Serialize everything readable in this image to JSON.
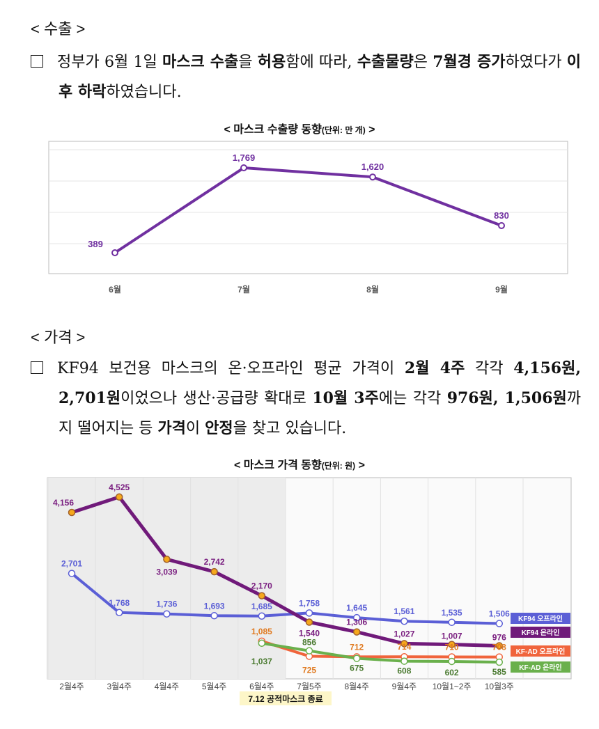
{
  "export_heading": "< 수출 >",
  "export_paragraph": [
    [
      "정부가 6월 1일 ",
      0
    ],
    [
      "마스크 수출",
      1
    ],
    [
      "을 ",
      0
    ],
    [
      "허용",
      1
    ],
    [
      "함에 따라, ",
      0
    ],
    [
      "수출물량",
      1
    ],
    [
      "은 ",
      0
    ],
    [
      "7월경 증가",
      1
    ],
    [
      "하였다가 ",
      0
    ],
    [
      "이후 하락",
      1
    ],
    [
      "하였습니다.",
      0
    ]
  ],
  "chart1_title": "< 마스크 수출량 동향",
  "chart1_unit": "(단위: 만 개)",
  "chart1_title_end": " >",
  "price_heading": "< 가격 >",
  "price_paragraph": [
    [
      "KF94 보건용 마스크의 온·오프라인 평균 가격이 ",
      0
    ],
    [
      "2월 4주",
      1
    ],
    [
      " 각각 ",
      0
    ],
    [
      "4,156원, 2,701원",
      1
    ],
    [
      "이었으나 생산·공급량 확대로 ",
      0
    ],
    [
      "10월 3주",
      1
    ],
    [
      "에는 각각 ",
      0
    ],
    [
      "976원, 1,506원",
      1
    ],
    [
      "까지 떨어지는 등 ",
      0
    ],
    [
      "가격",
      1
    ],
    [
      "이 ",
      0
    ],
    [
      "안정",
      1
    ],
    [
      "을 찾고 있습니다.",
      0
    ]
  ],
  "chart2_title": "< 마스크 가격 동향",
  "chart2_unit": "(단위: 원)",
  "chart2_title_end": " >",
  "chart_data": [
    {
      "type": "line",
      "title": "마스크 수출량 동향 (단위: 만 개)",
      "categories": [
        "6월",
        "7월",
        "8월",
        "9월"
      ],
      "series": [
        {
          "name": "수출량",
          "color": "#7030a0",
          "values": [
            389,
            1769,
            1620,
            830
          ],
          "labels": [
            "389",
            "1,769",
            "1,620",
            "830"
          ]
        }
      ]
    },
    {
      "type": "line",
      "title": "마스크 가격 동향 (단위: 원)",
      "categories": [
        "2월4주",
        "3월4주",
        "4월4주",
        "5월4주",
        "6월4주",
        "7월5주",
        "8월4주",
        "9월4주",
        "10월1~2주",
        "10월3주"
      ],
      "annotation": "7.12 공적마스크 종료",
      "series": [
        {
          "name": "KF94 오프라인",
          "color": "#5b5fd6",
          "label_color": "#5b5fd6",
          "values": [
            2701,
            1768,
            1736,
            1693,
            1685,
            1758,
            1645,
            1561,
            1535,
            1506
          ],
          "labels": [
            "2,701",
            "1,768",
            "1,736",
            "1,693",
            "1,685",
            "1,758",
            "1,645",
            "1,561",
            "1,535",
            "1,506"
          ]
        },
        {
          "name": "KF94 온라인",
          "color": "#701a7a",
          "label_color": "#7a1f80",
          "values": [
            4156,
            4525,
            3039,
            2742,
            2170,
            1540,
            1306,
            1027,
            1007,
            976
          ],
          "labels": [
            "4,156",
            "4,525",
            "3,039",
            "2,742",
            "2,170",
            "1,540",
            "1,306",
            "1,027",
            "1,007",
            "976"
          ]
        },
        {
          "name": "KF-AD 오프라인",
          "color": "#f0643c",
          "label_color": "#e07a20",
          "values": [
            null,
            null,
            null,
            null,
            1085,
            725,
            712,
            714,
            710,
            708
          ],
          "labels": [
            "",
            "",
            "",
            "",
            "1,085",
            "725",
            "712",
            "714",
            "710",
            "708"
          ]
        },
        {
          "name": "KF-AD 온라인",
          "color": "#6ab04c",
          "label_color": "#4a7a30",
          "values": [
            null,
            null,
            null,
            null,
            1037,
            856,
            675,
            608,
            602,
            585
          ],
          "labels": [
            "",
            "",
            "",
            "",
            "1,037",
            "856",
            "675",
            "608",
            "602",
            "585"
          ]
        }
      ]
    }
  ]
}
